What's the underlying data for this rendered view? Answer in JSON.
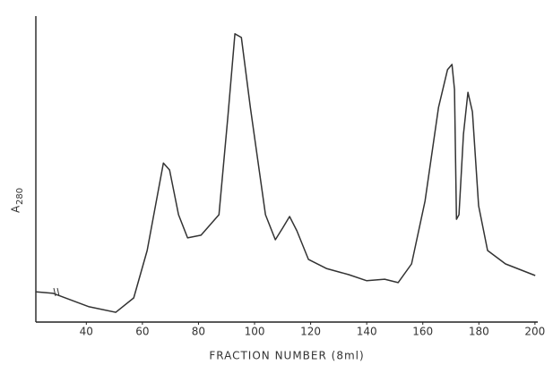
{
  "chart_data": {
    "type": "line",
    "x_label": "FRACTION NUMBER  (8ml)",
    "y_label": "A",
    "y_label_sub": "280",
    "xlim": [
      22,
      201
    ],
    "xticks": [
      40,
      60,
      80,
      100,
      120,
      140,
      160,
      180,
      200
    ],
    "ylim": [
      0,
      100
    ],
    "color": "#333333",
    "x": [
      21.8,
      28.2,
      41.0,
      50.5,
      56.9,
      61.7,
      67.5,
      69.7,
      72.9,
      76.1,
      80.9,
      87.3,
      90.5,
      93.0,
      95.3,
      98.5,
      103.9,
      107.4,
      110.0,
      112.5,
      115.1,
      119.2,
      125.6,
      133.6,
      140.0,
      146.4,
      151.2,
      156.0,
      160.8,
      165.6,
      168.8,
      170.4,
      171.3,
      172.0,
      172.9,
      174.5,
      176.1,
      177.7,
      179.9,
      183.1,
      189.5,
      200.1
    ],
    "values": [
      9.9,
      9.4,
      5.0,
      3.2,
      7.9,
      23.4,
      52.0,
      49.7,
      35.1,
      27.5,
      28.4,
      35.1,
      67.3,
      94.2,
      93.0,
      70.2,
      35.1,
      26.9,
      30.7,
      34.5,
      29.8,
      20.5,
      17.5,
      15.5,
      13.5,
      14.0,
      12.9,
      19.0,
      39.5,
      70.2,
      82.5,
      84.2,
      76.0,
      33.6,
      35.1,
      61.4,
      75.1,
      68.7,
      38.0,
      23.4,
      19.0,
      15.2
    ]
  }
}
